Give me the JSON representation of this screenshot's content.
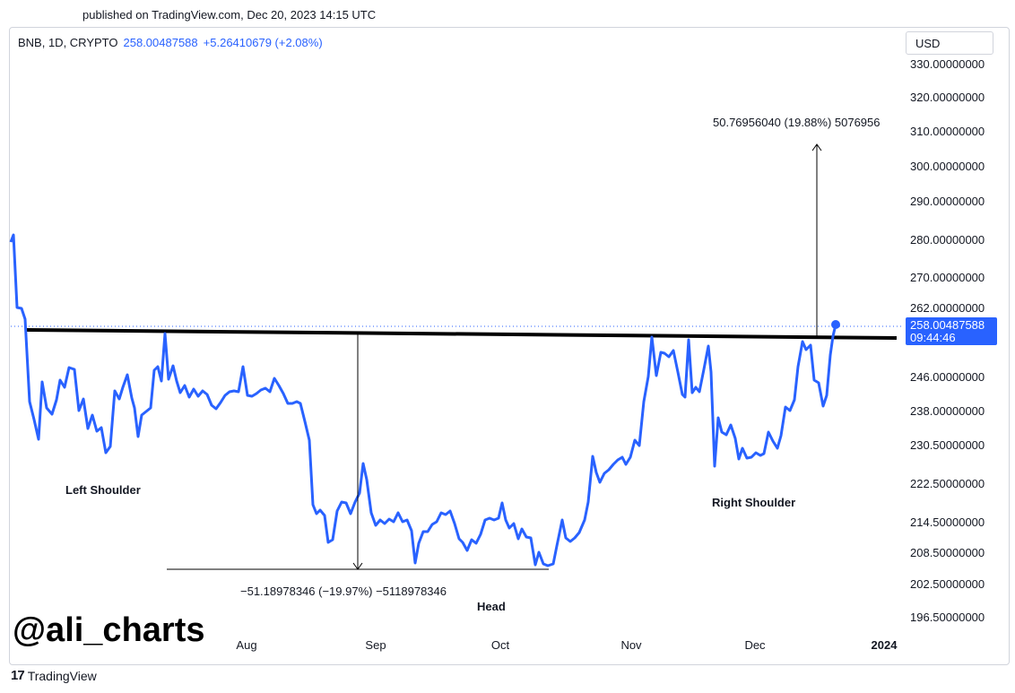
{
  "published": "published on TradingView.com, Dec 20, 2023 14:15 UTC",
  "header": {
    "symbol": "BNB, 1D, CRYPTO",
    "price": "258.00487588",
    "change": "+5.26410679 (+2.08%)"
  },
  "currency": "USD",
  "price_tag": {
    "price": "258.00487588",
    "countdown": "09:44:46"
  },
  "watermark": "@ali_charts",
  "footer_logo": {
    "mark": "17",
    "text": "TradingView"
  },
  "colors": {
    "line": "#2962ff",
    "neckline": "#000000",
    "tag_bg": "#2962ff"
  },
  "chart_data": {
    "type": "line",
    "series": [
      {
        "values": [
          281,
          262,
          262,
          259,
          238,
          236,
          232,
          228,
          244,
          240,
          236,
          236,
          240,
          247,
          246,
          245,
          250,
          250,
          239,
          242,
          233,
          233,
          229,
          229,
          224,
          226,
          237,
          240,
          239,
          243,
          249,
          245,
          236,
          229,
          240,
          241,
          242,
          251,
          252,
          248,
          255,
          253,
          248,
          250,
          248,
          244,
          241,
          244,
          243,
          245,
          245,
          241,
          240,
          243,
          245,
          245,
          247,
          247,
          242,
          241,
          242,
          248,
          246,
          248,
          245,
          243,
          238,
          237,
          238,
          238,
          226,
          212,
          206,
          206,
          205,
          206,
          200,
          200,
          208,
          210,
          210,
          208,
          206,
          209,
          210,
          228,
          222,
          212,
          204,
          206,
          206,
          208,
          207,
          207,
          209,
          206,
          205,
          201,
          198,
          194,
          194,
          202,
          203,
          198,
          202,
          206,
          206,
          208,
          206,
          201,
          198,
          198,
          196,
          197,
          196,
          196,
          203,
          202,
          206,
          203,
          200,
          200,
          197,
          194,
          194,
          200,
          206,
          210,
          214,
          219,
          222,
          225,
          218,
          222,
          225,
          239,
          243,
          244,
          248,
          249,
          246,
          252,
          264,
          259,
          255,
          254,
          254,
          261,
          262,
          262,
          258,
          251,
          251,
          245,
          236,
          232,
          229,
          230,
          234,
          240,
          241,
          246,
          249,
          253,
          256,
          270,
          286,
          258,
          258,
          282,
          282,
          282,
          268,
          248,
          248,
          260,
          259,
          246,
          248,
          264,
          265,
          253,
          253,
          252,
          251,
          252,
          252,
          251,
          251,
          253,
          255,
          254,
          261,
          264,
          268,
          272,
          277,
          283,
          285,
          283,
          281,
          270,
          271,
          265,
          270,
          275,
          290,
          291,
          292,
          293,
          293,
          293,
          293,
          298,
          305,
          311,
          325,
          342,
          358,
          365,
          365,
          370,
          372,
          373,
          376,
          378,
          381,
          387,
          394,
          403,
          411,
          419,
          428,
          436,
          455,
          486,
          484,
          499,
          520,
          530,
          544,
          556,
          569,
          581,
          596,
          614,
          622,
          634,
          646,
          654,
          668,
          676,
          683,
          684,
          697,
          712,
          734,
          742,
          760,
          773,
          780,
          790,
          800,
          806,
          815
        ],
        "note": "trace points for the BNB 1D close line, converted to the price axis in the draw script"
      }
    ],
    "x_ticks": [
      "Aug",
      "Sep",
      "Oct",
      "Nov",
      "Dec",
      "2024"
    ],
    "y_ticks": [
      "330.00000000",
      "320.00000000",
      "310.00000000",
      "300.00000000",
      "290.00000000",
      "280.00000000",
      "270.00000000",
      "262.00000000",
      "246.00000000",
      "238.00000000",
      "230.50000000",
      "222.50000000",
      "214.50000000",
      "208.50000000",
      "202.50000000",
      "196.50000000"
    ],
    "annotations": {
      "left_shoulder": "Left Shoulder",
      "head": "Head",
      "right_shoulder": "Right Shoulder",
      "down_measure": "−51.18978346 (−19.97%) −5118978346",
      "up_measure": "50.76956040 (19.88%) 5076956"
    }
  }
}
